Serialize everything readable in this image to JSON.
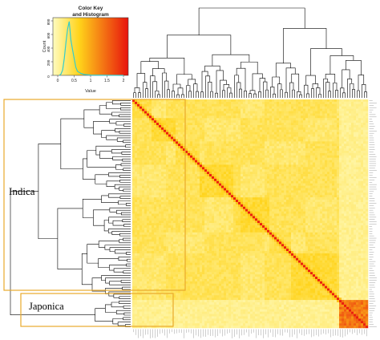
{
  "colors": {
    "low": "#fffcc0",
    "mid": "#ffd31a",
    "high": "#e8130d",
    "histogram": "#33cccc",
    "group_box": "#e8a92b",
    "dendrogram": "#000000"
  },
  "color_key": {
    "title_line1": "Color Key",
    "title_line2": "and Histogram",
    "xlabel": "Value",
    "ylabel": "Count",
    "x_ticks": [
      "0",
      "0.5",
      "1",
      "1.5",
      "2"
    ],
    "y_ticks": [
      "0",
      "200",
      "400",
      "600",
      "800"
    ]
  },
  "chart_data": {
    "type": "heatmap",
    "title": "",
    "color_key": {
      "value_range": [
        0,
        2
      ],
      "colormap": [
        "light yellow",
        "yellow",
        "orange",
        "red"
      ],
      "histogram": {
        "x": [
          0.05,
          0.1,
          0.15,
          0.2,
          0.25,
          0.3,
          0.35,
          0.4,
          0.45,
          0.5,
          0.55,
          0.6,
          0.7,
          0.8,
          1.0,
          1.5,
          2.0
        ],
        "count": [
          0,
          20,
          80,
          250,
          480,
          680,
          790,
          520,
          380,
          250,
          120,
          60,
          30,
          15,
          5,
          2,
          0
        ]
      }
    },
    "groups": [
      {
        "label": "Indica",
        "position": "upper rows"
      },
      {
        "label": "Japonica",
        "position": "lower rows"
      }
    ],
    "grid": false,
    "legend": "top-left"
  }
}
